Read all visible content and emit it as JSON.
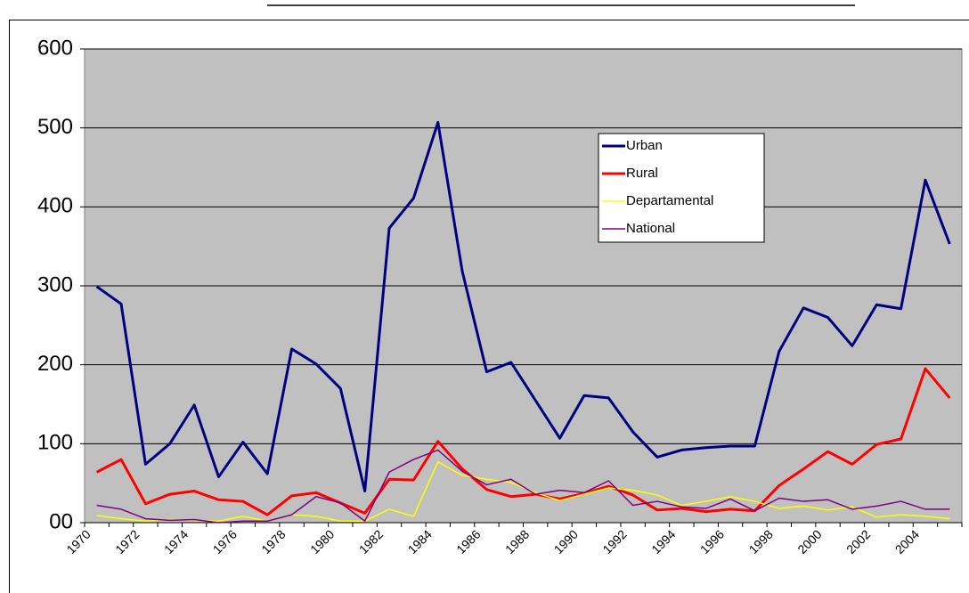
{
  "chart_data": {
    "type": "line",
    "categories": [
      "1970",
      null,
      "1972",
      null,
      "1974",
      null,
      "1976",
      null,
      "1978",
      null,
      "1980",
      null,
      "1982",
      null,
      "1984",
      null,
      "1986",
      null,
      "1988",
      null,
      "1990",
      null,
      "1992",
      null,
      "1994",
      null,
      "1996",
      null,
      "1998",
      null,
      "2000",
      null,
      "2002",
      null,
      "2004",
      null
    ],
    "series": [
      {
        "name": "Urban",
        "color": "#000080",
        "width": 3,
        "values": [
          299,
          277,
          74,
          100,
          149,
          58,
          102,
          62,
          220,
          201,
          170,
          40,
          373,
          411,
          507,
          318,
          191,
          203,
          155,
          107,
          161,
          158,
          115,
          83,
          92,
          95,
          97,
          97,
          217,
          272,
          260,
          224,
          276,
          271,
          434,
          353
        ]
      },
      {
        "name": "Rural",
        "color": "#ff0000",
        "width": 3,
        "values": [
          64,
          80,
          24,
          36,
          40,
          29,
          27,
          10,
          34,
          38,
          25,
          12,
          55,
          54,
          103,
          68,
          42,
          33,
          36,
          30,
          37,
          46,
          35,
          16,
          18,
          14,
          17,
          15,
          47,
          68,
          90,
          74,
          99,
          106,
          195,
          158
        ]
      },
      {
        "name": "Departamental",
        "color": "#ffff00",
        "width": 1.5,
        "values": [
          9,
          5,
          2,
          4,
          3,
          2,
          8,
          2,
          10,
          8,
          2,
          2,
          17,
          8,
          77,
          60,
          55,
          51,
          38,
          28,
          36,
          44,
          41,
          35,
          22,
          27,
          33,
          27,
          18,
          21,
          16,
          20,
          7,
          10,
          8,
          5
        ]
      },
      {
        "name": "National",
        "color": "#800080",
        "width": 1.5,
        "values": [
          22,
          17,
          5,
          3,
          4,
          0,
          2,
          2,
          10,
          33,
          25,
          2,
          64,
          80,
          92,
          65,
          48,
          55,
          36,
          41,
          38,
          53,
          22,
          27,
          20,
          18,
          30,
          15,
          31,
          27,
          29,
          17,
          21,
          27,
          17,
          17
        ]
      }
    ],
    "ylim": [
      0,
      600
    ],
    "yticks": [
      {
        "value": 0,
        "label": "00"
      },
      100,
      200,
      300,
      400,
      500,
      600
    ],
    "grid": true
  }
}
